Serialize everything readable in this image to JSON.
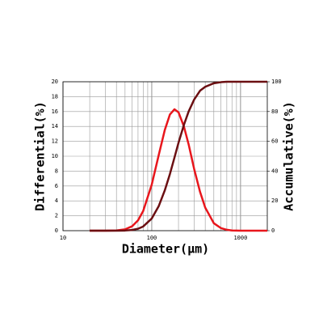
{
  "chart_data": {
    "type": "line",
    "xlabel": "Diameter(μm)",
    "ylabel": "Differential(%)",
    "y2label": "Accumulative(%)",
    "xscale": "log",
    "xlim": [
      10,
      2000
    ],
    "xticks": [
      10,
      100,
      1000
    ],
    "xminorticks": [
      20,
      30,
      40,
      50,
      60,
      70,
      80,
      90,
      200,
      300,
      400,
      500,
      600,
      700,
      800,
      900
    ],
    "ylim": [
      0,
      20
    ],
    "yticks": [
      0,
      2,
      4,
      6,
      8,
      10,
      12,
      14,
      16,
      18,
      20
    ],
    "y2lim": [
      0,
      100
    ],
    "y2ticks": [
      0,
      20,
      40,
      60,
      80,
      100
    ],
    "grid": true,
    "x": [
      20,
      30,
      40,
      50,
      60,
      70,
      80,
      100,
      120,
      140,
      160,
      180,
      200,
      230,
      260,
      300,
      350,
      400,
      500,
      600,
      700,
      800,
      1000,
      1500,
      2000
    ],
    "series": [
      {
        "name": "Differential",
        "color": "#e8161c",
        "axis": "y",
        "values": [
          0,
          0,
          0.03,
          0.18,
          0.59,
          1.39,
          2.64,
          6.2,
          10.2,
          13.5,
          15.6,
          16.3,
          15.9,
          14.0,
          11.6,
          8.3,
          5.2,
          3.1,
          1.0,
          0.35,
          0.12,
          0.03,
          0,
          0,
          0
        ]
      },
      {
        "name": "Accumulative",
        "color": "#6b0f12",
        "axis": "y2",
        "values": [
          0,
          0,
          0,
          0.1,
          0.5,
          1.3,
          2.8,
          8.2,
          16.6,
          27,
          38,
          49,
          59,
          71,
          80,
          88,
          94,
          96.6,
          99,
          99.7,
          100,
          100,
          100,
          100,
          100
        ]
      }
    ]
  }
}
